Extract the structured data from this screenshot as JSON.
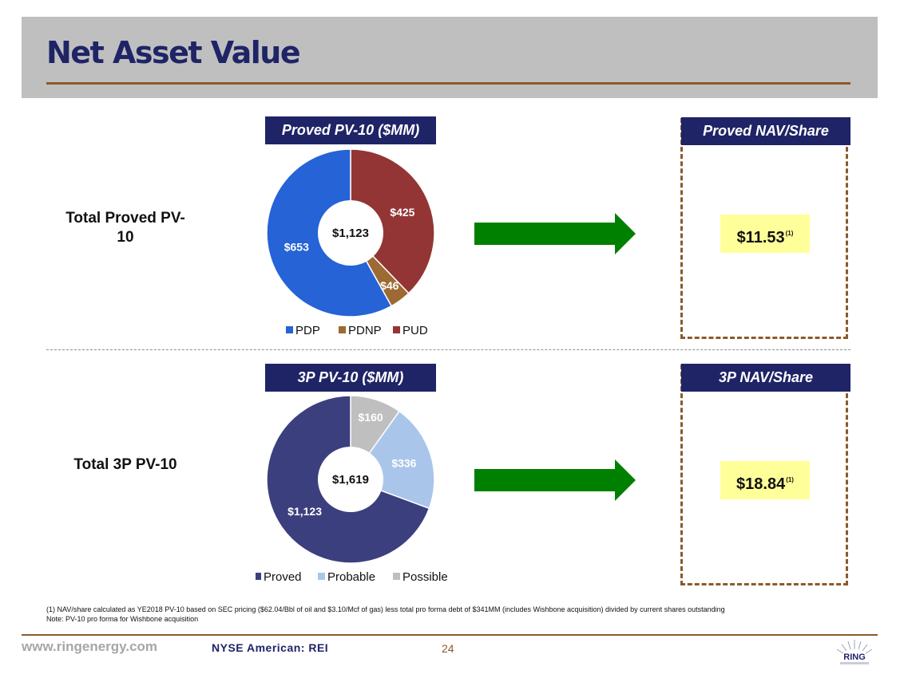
{
  "page": {
    "title": "Net Asset Value",
    "row1_label": "Total Proved PV-10",
    "row2_label": "Total 3P PV-10",
    "footnote1": "(1) NAV/share calculated as YE2018 PV-10 based on SEC pricing ($62.04/Bbl of oil and $3.10/Mcf of gas) less total pro forma debt of $341MM (includes Wishbone acquisition) divided by current  shares outstanding",
    "footnote2": "Note: PV-10 pro forma for Wishbone acquisition",
    "footer_url": "www.ringenergy.com",
    "footer_ticker": "NYSE American: REI",
    "page_number": "24",
    "logo_text": "RING",
    "colors": {
      "navy": "#1f2467",
      "brown": "#8b5a2b",
      "arrow_green": "#008000",
      "highlight": "#ffff99"
    }
  },
  "nav": [
    {
      "title": "Proved NAV/Share",
      "value": "$11.53",
      "note": "(1)"
    },
    {
      "title": "3P NAV/Share",
      "value": "$18.84",
      "note": "(1)"
    }
  ],
  "chart_data": [
    {
      "type": "pie",
      "title": "Proved PV-10 ($MM)",
      "center_label": "$1,123",
      "categories": [
        "PDP",
        "PDNP",
        "PUD"
      ],
      "values": [
        653,
        46,
        425
      ],
      "labels": [
        "$653",
        "$46",
        "$425"
      ],
      "colors": [
        "#2563d6",
        "#9c6a32",
        "#943535"
      ],
      "legend_position": "bottom"
    },
    {
      "type": "pie",
      "title": "3P PV-10 ($MM)",
      "center_label": "$1,619",
      "categories": [
        "Proved",
        "Probable",
        "Possible"
      ],
      "values": [
        1123,
        336,
        160
      ],
      "labels": [
        "$1,123",
        "$336",
        "$160"
      ],
      "colors": [
        "#3c3f7e",
        "#a9c6ea",
        "#bfbfbf"
      ],
      "legend_position": "bottom"
    }
  ]
}
